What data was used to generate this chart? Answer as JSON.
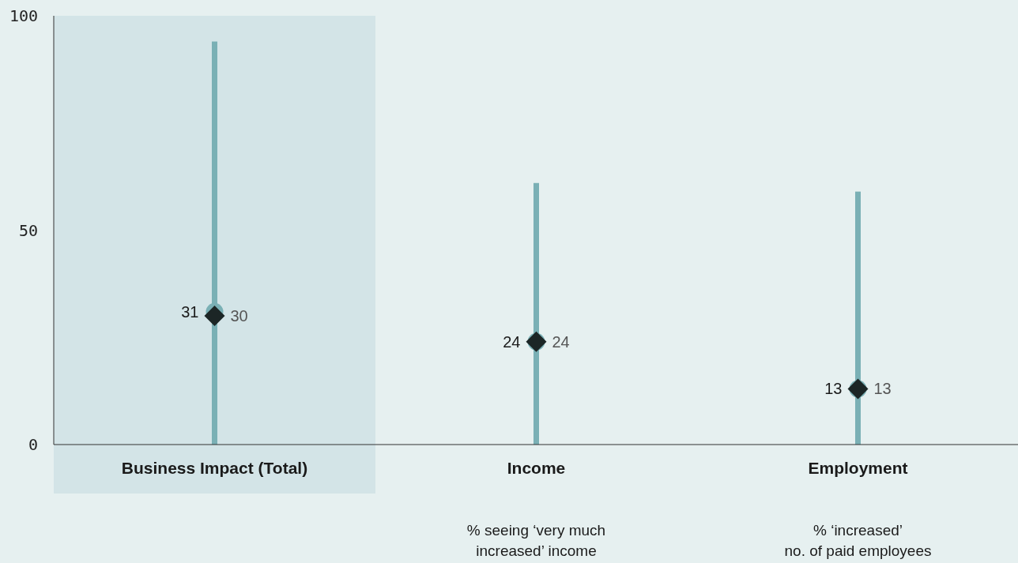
{
  "chart_data": {
    "type": "bar",
    "categories": [
      "Business Impact (Total)",
      "Income",
      "Employment"
    ],
    "series": [
      {
        "color": "#7ab0b5",
        "values": [
          94,
          61,
          59
        ]
      },
      {
        "type": "scatter",
        "marker": "circle",
        "color": "#7ab0b5",
        "values": [
          31,
          24,
          13
        ],
        "value_labels": [
          "31",
          "24",
          "13"
        ]
      },
      {
        "type": "scatter",
        "marker": "diamond",
        "color": "#1c2626",
        "values": [
          30,
          24,
          13
        ],
        "value_labels": [
          "30",
          "24",
          "13"
        ]
      }
    ],
    "ylim": [
      0,
      100
    ],
    "yticks": [
      0,
      50,
      100
    ],
    "grid": false,
    "bands": [
      {
        "axis": "x",
        "from": "Business Impact (Total)",
        "to": "Business Impact (Total)",
        "color": "#d3e4e7"
      }
    ],
    "annotations": [
      "% seeing ‘very much\nincreased’ income",
      "% ‘increased’\nno. of paid employees"
    ]
  }
}
